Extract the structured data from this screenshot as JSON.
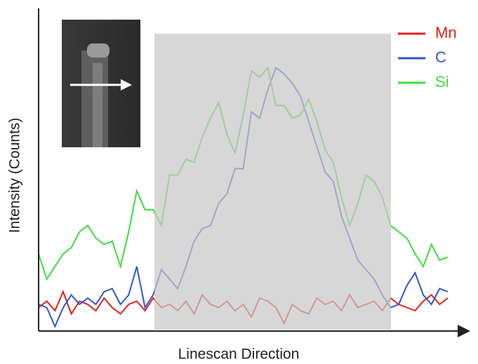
{
  "chart_data": {
    "type": "line",
    "x_label": "Linescan Direction",
    "y_label": "Intensity (Counts)",
    "x": [
      0,
      2,
      4,
      6,
      8,
      10,
      12,
      14,
      16,
      18,
      20,
      22,
      24,
      26,
      28,
      30,
      32,
      34,
      36,
      38,
      40,
      42,
      44,
      46,
      48,
      50,
      52,
      54,
      56,
      58,
      60,
      62,
      64,
      66,
      68,
      70,
      72,
      74,
      76,
      78,
      80,
      82,
      84,
      86,
      88,
      90,
      92,
      94,
      96,
      98,
      100
    ],
    "xlim": [
      0,
      100
    ],
    "ylim": [
      0,
      100
    ],
    "highlight_x": [
      28.3,
      86.1
    ],
    "legend": "upper right",
    "series": [
      {
        "name": "Mn",
        "color": "#e0201c",
        "values": [
          7,
          9,
          6,
          12,
          5,
          9,
          8,
          6,
          10,
          7,
          5,
          8,
          9,
          6,
          10,
          7,
          8,
          6,
          9,
          5,
          11,
          8,
          7,
          9,
          6,
          8,
          4,
          10,
          9,
          7,
          2,
          8,
          6,
          5,
          10,
          8,
          9,
          6,
          11,
          7,
          8,
          9,
          6,
          10,
          8,
          7,
          6,
          9,
          11,
          8,
          10
        ]
      },
      {
        "name": "C",
        "color": "#2f55c8",
        "values": [
          8,
          7,
          1,
          7,
          11,
          8,
          10,
          8,
          12,
          13,
          8,
          11,
          20,
          7,
          11,
          19,
          16,
          13,
          20,
          28,
          32,
          33,
          40,
          43,
          51,
          51,
          69,
          67,
          76,
          83,
          81,
          78,
          74,
          66,
          58,
          50,
          47,
          36,
          29,
          22,
          19,
          16,
          11,
          7,
          8,
          14,
          18,
          11,
          8,
          13,
          12
        ]
      },
      {
        "name": "Si",
        "color": "#3ddc3d",
        "values": [
          24,
          16,
          20,
          24,
          26,
          31,
          33,
          29,
          27,
          28,
          20,
          31,
          44,
          38,
          38,
          33,
          49,
          49,
          54,
          53,
          61,
          67,
          72,
          62,
          56,
          68,
          82,
          80,
          83,
          71,
          71,
          67,
          68,
          73,
          66,
          57,
          53,
          42,
          33,
          40,
          49,
          47,
          42,
          33,
          31,
          29,
          24,
          20,
          27,
          22,
          23
        ]
      }
    ]
  }
}
